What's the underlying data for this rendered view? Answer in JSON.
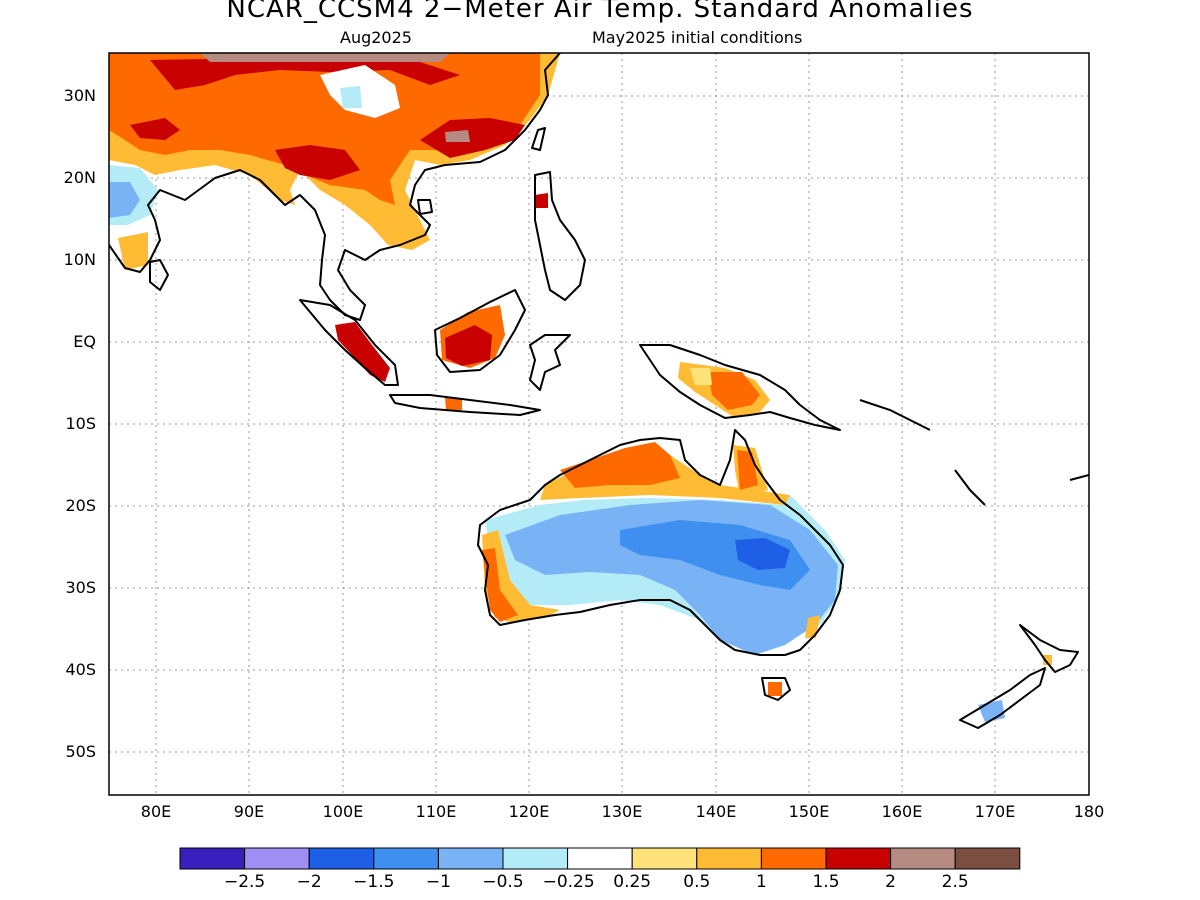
{
  "header": {
    "title": "NCAR_CCSM4 2−Meter Air Temp. Standard Anomalies",
    "left_subtitle": "Aug2025",
    "right_subtitle": "May2025 initial conditions"
  },
  "axes": {
    "lat_ticks": [
      "30N",
      "20N",
      "10N",
      "EQ",
      "10S",
      "20S",
      "30S",
      "40S",
      "50S"
    ],
    "lon_ticks": [
      "80E",
      "90E",
      "100E",
      "110E",
      "120E",
      "130E",
      "140E",
      "150E",
      "160E",
      "170E",
      "180"
    ]
  },
  "colorbar": {
    "colors": [
      "#3a1fbf",
      "#9f8ff5",
      "#1f5fe6",
      "#3f8ff0",
      "#79b3f6",
      "#b3ecf6",
      "#ffffff",
      "#ffe37a",
      "#ffbb33",
      "#ff6a00",
      "#c80000",
      "#b58a80",
      "#7a4e40"
    ],
    "labels": [
      "−2.5",
      "−2",
      "−1.5",
      "−1",
      "−0.5",
      "−0.25",
      "0.25",
      "0.5",
      "1",
      "1.5",
      "2",
      "2.5"
    ]
  },
  "anomaly_regions": [
    {
      "name": "Southern China / Indochina",
      "level": "warm",
      "category": "1 to 2"
    },
    {
      "name": "Tibetan Plateau",
      "level": "mixed",
      "category": "-0.5 to 2.5"
    },
    {
      "name": "India",
      "level": "warm",
      "category": "0.5 to 2"
    },
    {
      "name": "Bay of Bengal coast",
      "level": "cool",
      "category": "-1 to -0.25"
    },
    {
      "name": "Borneo",
      "level": "warm",
      "category": "1 to 2"
    },
    {
      "name": "Sumatra",
      "level": "warm",
      "category": "1.5 to 2"
    },
    {
      "name": "New Guinea",
      "level": "warm",
      "category": "0.5 to 1.5"
    },
    {
      "name": "Northern Australia",
      "level": "warm",
      "category": "0.5 to 1.5"
    },
    {
      "name": "Central / Eastern Australia",
      "level": "cool",
      "category": "-1.5 to -0.25"
    },
    {
      "name": "Western Australia coast",
      "level": "warm",
      "category": "0.5 to 1.5"
    },
    {
      "name": "New Zealand South Island",
      "level": "cool",
      "category": "-1"
    }
  ]
}
